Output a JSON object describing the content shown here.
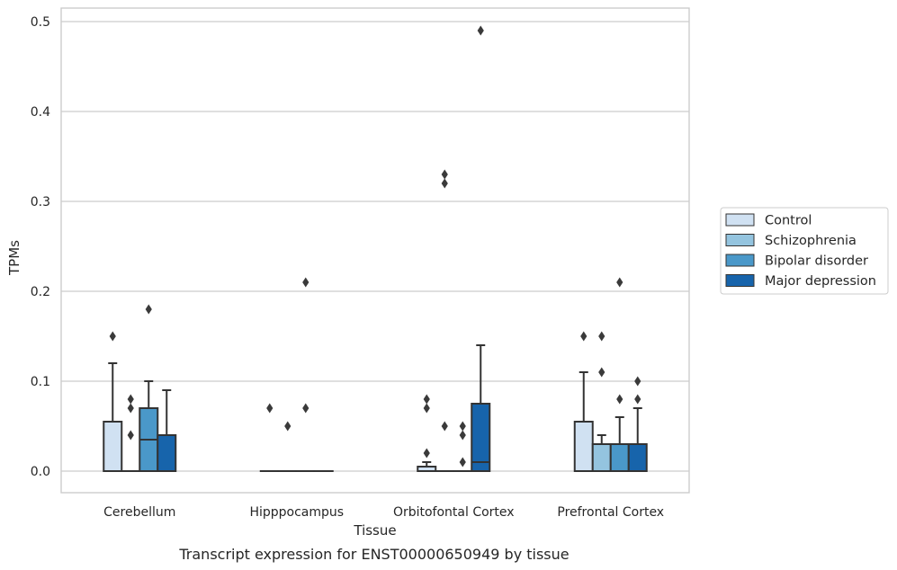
{
  "chart_data": {
    "type": "box",
    "caption": "Transcript expression for ENST00000650949 by tissue",
    "xlabel": "Tissue",
    "ylabel": "TPMs",
    "ylim": [
      -0.024,
      0.515
    ],
    "yticks": [
      0.0,
      0.1,
      0.2,
      0.3,
      0.4,
      0.5
    ],
    "ytick_labels": [
      "0.0",
      "0.1",
      "0.2",
      "0.3",
      "0.4",
      "0.5"
    ],
    "grid": "horizontal",
    "legend_position": "right",
    "categories": [
      "Cerebellum",
      "Hipppocampus",
      "Orbitofontal Cortex",
      "Prefrontal Cortex"
    ],
    "series": [
      {
        "name": "Control",
        "color": "#d0e1f2",
        "boxes": [
          {
            "q1": 0.0,
            "median": 0.0,
            "q3": 0.055,
            "whisker_low": 0.0,
            "whisker_high": 0.12,
            "outliers": [
              0.15
            ]
          },
          {
            "q1": 0.0,
            "median": 0.0,
            "q3": 0.0,
            "whisker_low": 0.0,
            "whisker_high": 0.0,
            "outliers": [
              0.07
            ]
          },
          {
            "q1": 0.0,
            "median": 0.0,
            "q3": 0.005,
            "whisker_low": 0.0,
            "whisker_high": 0.01,
            "outliers": [
              0.02,
              0.07,
              0.08
            ]
          },
          {
            "q1": 0.0,
            "median": 0.0,
            "q3": 0.055,
            "whisker_low": 0.0,
            "whisker_high": 0.11,
            "outliers": [
              0.15
            ]
          }
        ]
      },
      {
        "name": "Schizophrenia",
        "color": "#94c4df",
        "boxes": [
          {
            "q1": 0.0,
            "median": 0.0,
            "q3": 0.0,
            "whisker_low": 0.0,
            "whisker_high": 0.0,
            "outliers": [
              0.04,
              0.07,
              0.08
            ]
          },
          {
            "q1": 0.0,
            "median": 0.0,
            "q3": 0.0,
            "whisker_low": 0.0,
            "whisker_high": 0.0,
            "outliers": [
              0.05
            ]
          },
          {
            "q1": 0.0,
            "median": 0.0,
            "q3": 0.0,
            "whisker_low": 0.0,
            "whisker_high": 0.0,
            "outliers": [
              0.05,
              0.32,
              0.33
            ]
          },
          {
            "q1": 0.0,
            "median": 0.0,
            "q3": 0.03,
            "whisker_low": 0.0,
            "whisker_high": 0.04,
            "outliers": [
              0.11,
              0.15
            ]
          }
        ]
      },
      {
        "name": "Bipolar disorder",
        "color": "#4a98c9",
        "boxes": [
          {
            "q1": 0.0,
            "median": 0.035,
            "q3": 0.07,
            "whisker_low": 0.0,
            "whisker_high": 0.1,
            "outliers": [
              0.18
            ]
          },
          {
            "q1": 0.0,
            "median": 0.0,
            "q3": 0.0,
            "whisker_low": 0.0,
            "whisker_high": 0.0,
            "outliers": [
              0.21,
              0.07
            ]
          },
          {
            "q1": 0.0,
            "median": 0.0,
            "q3": 0.0,
            "whisker_low": 0.0,
            "whisker_high": 0.0,
            "outliers": [
              0.01,
              0.04,
              0.05
            ]
          },
          {
            "q1": 0.0,
            "median": 0.0,
            "q3": 0.03,
            "whisker_low": 0.0,
            "whisker_high": 0.06,
            "outliers": [
              0.08,
              0.21
            ]
          }
        ]
      },
      {
        "name": "Major depression",
        "color": "#1764ab",
        "boxes": [
          {
            "q1": 0.0,
            "median": 0.0,
            "q3": 0.04,
            "whisker_low": 0.0,
            "whisker_high": 0.09,
            "outliers": []
          },
          {
            "q1": 0.0,
            "median": 0.0,
            "q3": 0.0,
            "whisker_low": 0.0,
            "whisker_high": 0.0,
            "outliers": []
          },
          {
            "q1": 0.0,
            "median": 0.01,
            "q3": 0.075,
            "whisker_low": 0.0,
            "whisker_high": 0.14,
            "outliers": [
              0.49
            ]
          },
          {
            "q1": 0.0,
            "median": 0.0,
            "q3": 0.03,
            "whisker_low": 0.0,
            "whisker_high": 0.07,
            "outliers": [
              0.08,
              0.1
            ]
          }
        ]
      }
    ]
  },
  "colors": {
    "grid": "#cccccc",
    "frame": "#cccccc",
    "stroke": "#333333"
  }
}
